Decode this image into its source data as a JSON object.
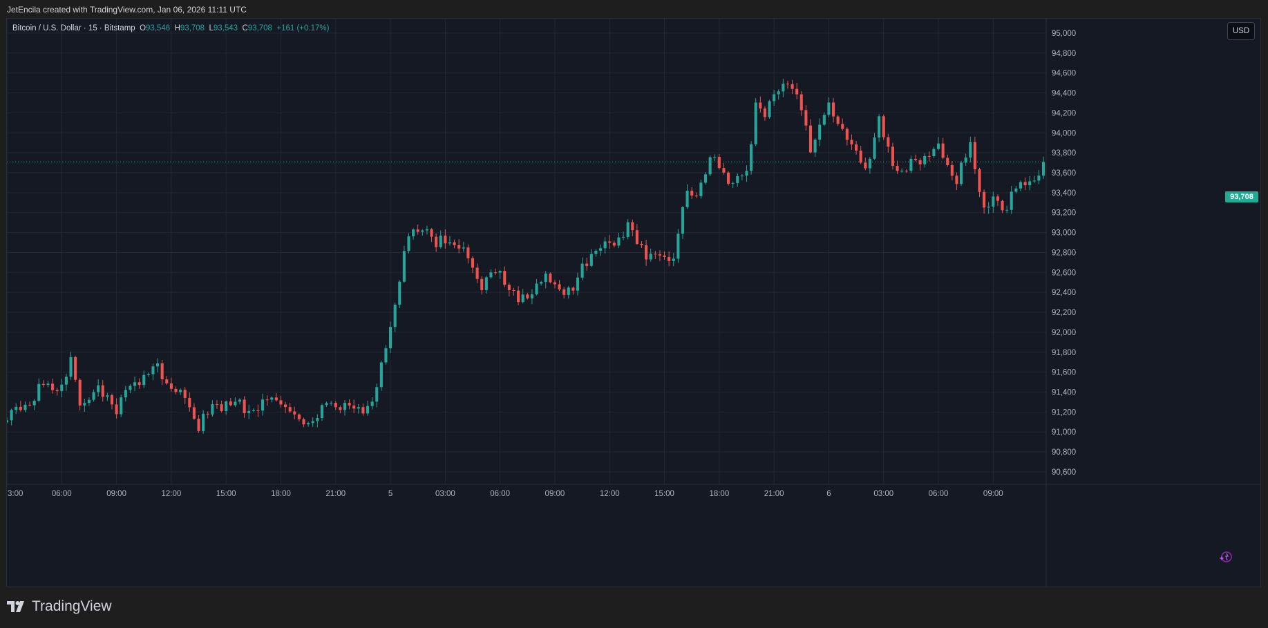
{
  "caption": "JetEncila created with TradingView.com, Jan 06, 2026 11:11 UTC",
  "legend": {
    "symbol": "Bitcoin / U.S. Dollar · 15 · Bitstamp",
    "o_label": "O",
    "o": "93,546",
    "h_label": "H",
    "h": "93,708",
    "l_label": "L",
    "l": "93,543",
    "c_label": "C",
    "c": "93,708",
    "change": "+161 (+0.17%)"
  },
  "currency_button": "USD",
  "last_price_label": "93,708",
  "brand_name": "TradingView",
  "colors": {
    "up": "#26a69a",
    "down": "#ef5350",
    "background": "#151924",
    "grid": "#232733",
    "last_price": "#22ab94"
  },
  "chart_data": {
    "type": "candlestick",
    "title": "Bitcoin / U.S. Dollar · 15 · Bitstamp",
    "y_ticks": [
      90600,
      90800,
      91000,
      91200,
      91400,
      91600,
      91800,
      92000,
      92200,
      92400,
      92600,
      92800,
      93000,
      93200,
      93400,
      93600,
      93800,
      94000,
      94200,
      94400,
      94600,
      94800,
      95000
    ],
    "y_tick_labels": [
      "90,600",
      "90,800",
      "91,000",
      "91,200",
      "91,400",
      "91,600",
      "91,800",
      "92,000",
      "92,200",
      "92,400",
      "92,600",
      "92,800",
      "93,000",
      "93,200",
      "93,400",
      "93,600",
      "93,800",
      "94,000",
      "94,200",
      "94,400",
      "94,600",
      "94,800",
      "95,000"
    ],
    "ylim": [
      90475,
      95145
    ],
    "x_tick_labels": [
      "3:00",
      "06:00",
      "09:00",
      "12:00",
      "15:00",
      "18:00",
      "21:00",
      "5",
      "03:00",
      "06:00",
      "09:00",
      "12:00",
      "15:00",
      "18:00",
      "21:00",
      "6",
      "03:00",
      "06:00",
      "09:00"
    ],
    "x_tick_hours": [
      3,
      6,
      9,
      12,
      15,
      18,
      21,
      24,
      27,
      30,
      33,
      36,
      39,
      42,
      45,
      48,
      51,
      54,
      57
    ],
    "xlim_hours": [
      3,
      59.75
    ],
    "bar_interval_hours": 0.25,
    "last_price": 93708,
    "anchors": [
      [
        3.0,
        91150
      ],
      [
        4.0,
        91280
      ],
      [
        5.0,
        91450
      ],
      [
        6.0,
        91460
      ],
      [
        6.5,
        91700
      ],
      [
        7.0,
        91300
      ],
      [
        8.0,
        91420
      ],
      [
        9.0,
        91250
      ],
      [
        10.0,
        91500
      ],
      [
        11.0,
        91640
      ],
      [
        11.75,
        91520
      ],
      [
        12.5,
        91380
      ],
      [
        13.5,
        91100
      ],
      [
        14.5,
        91250
      ],
      [
        15.0,
        91320
      ],
      [
        16.0,
        91220
      ],
      [
        17.0,
        91300
      ],
      [
        18.0,
        91320
      ],
      [
        19.0,
        91080
      ],
      [
        20.0,
        91160
      ],
      [
        20.75,
        91320
      ],
      [
        22.0,
        91180
      ],
      [
        23.0,
        91300
      ],
      [
        23.4,
        91550
      ],
      [
        24.0,
        92100
      ],
      [
        25.0,
        92950
      ],
      [
        25.75,
        93100
      ],
      [
        26.5,
        92850
      ],
      [
        27.0,
        92950
      ],
      [
        28.0,
        92800
      ],
      [
        29.0,
        92500
      ],
      [
        30.0,
        92600
      ],
      [
        31.0,
        92300
      ],
      [
        32.0,
        92500
      ],
      [
        33.0,
        92500
      ],
      [
        34.0,
        92400
      ],
      [
        34.5,
        92680
      ],
      [
        35.0,
        92800
      ],
      [
        36.0,
        92900
      ],
      [
        37.0,
        93050
      ],
      [
        38.0,
        92800
      ],
      [
        39.0,
        92700
      ],
      [
        39.6,
        92820
      ],
      [
        40.0,
        93280
      ],
      [
        40.75,
        93430
      ],
      [
        41.5,
        93750
      ],
      [
        42.0,
        93650
      ],
      [
        42.75,
        93500
      ],
      [
        43.6,
        93600
      ],
      [
        44.0,
        94350
      ],
      [
        44.5,
        94150
      ],
      [
        45.0,
        94350
      ],
      [
        45.75,
        94550
      ],
      [
        46.5,
        94200
      ],
      [
        47.0,
        93850
      ],
      [
        47.5,
        94050
      ],
      [
        48.0,
        94250
      ],
      [
        48.75,
        94050
      ],
      [
        49.5,
        93750
      ],
      [
        50.0,
        93650
      ],
      [
        50.75,
        94100
      ],
      [
        51.5,
        93700
      ],
      [
        52.0,
        93600
      ],
      [
        53.0,
        93750
      ],
      [
        53.75,
        93850
      ],
      [
        54.5,
        93700
      ],
      [
        55.0,
        93550
      ],
      [
        55.75,
        93850
      ],
      [
        56.5,
        93250
      ],
      [
        57.0,
        93300
      ],
      [
        57.75,
        93250
      ],
      [
        58.0,
        93430
      ],
      [
        59.0,
        93500
      ],
      [
        59.75,
        93708
      ]
    ]
  }
}
